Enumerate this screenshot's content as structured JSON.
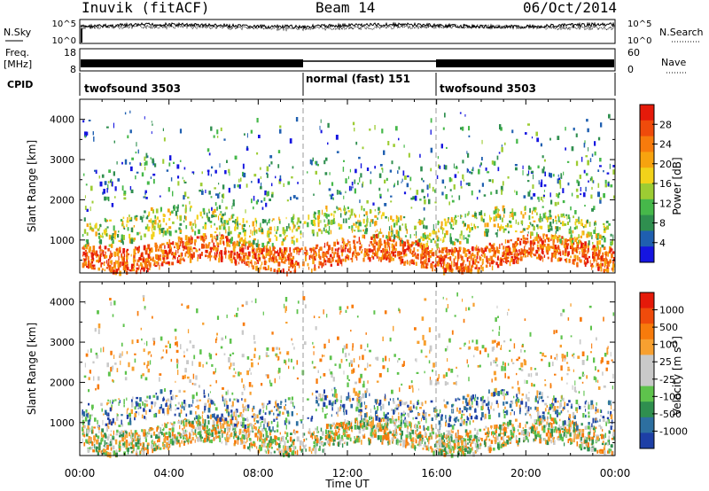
{
  "header": {
    "station": "Inuvik (fitACF)",
    "beam": "Beam 14",
    "date": "06/Oct/2014"
  },
  "left_labels": {
    "nsky": "N.Sky",
    "freq_line1": "Freq.",
    "freq_line2": "[MHz]",
    "cpid": "CPID"
  },
  "right_labels": {
    "nsearch": "N.Search",
    "nave": "Nave"
  },
  "panel_ticks": {
    "noise_left": [
      "10^5",
      "10^0"
    ],
    "noise_right": [
      "10^5",
      "10^0"
    ],
    "freq_left": [
      "18",
      "8"
    ],
    "nave_right": [
      "60",
      "0"
    ]
  },
  "cpid_segments": [
    {
      "label": "twofsound 3503",
      "start_hour": 0,
      "end_hour": 10
    },
    {
      "label": "normal (fast) 151",
      "start_hour": 10,
      "end_hour": 16
    },
    {
      "label": "twofsound 3503",
      "start_hour": 16,
      "end_hour": 24
    }
  ],
  "chart_data": [
    {
      "type": "heatmap",
      "quantity": "Power",
      "xlabel": "",
      "ylabel": "Slant Range [km]",
      "xlim_hours": [
        0,
        24
      ],
      "ylim": [
        180,
        4500
      ],
      "yticks": [
        "1000",
        "2000",
        "3000",
        "4000"
      ],
      "colorbar": {
        "label": "Power [dB]",
        "ticks": [
          "28",
          "24",
          "20",
          "16",
          "12",
          "8",
          "4"
        ],
        "colors": [
          "#1515e0",
          "#1f5fb0",
          "#2f8f4f",
          "#46b84a",
          "#9dcc33",
          "#f2d21a",
          "#f7a30f",
          "#f77b0c",
          "#ef4b0b",
          "#e51a0a"
        ]
      }
    },
    {
      "type": "heatmap",
      "quantity": "Velocity",
      "xlabel": "Time UT",
      "ylabel": "Slant Range [km]",
      "xlim_hours": [
        0,
        24
      ],
      "ylim": [
        180,
        4500
      ],
      "yticks": [
        "1000",
        "2000",
        "3000",
        "4000"
      ],
      "xticks": [
        "00:00",
        "04:00",
        "08:00",
        "12:00",
        "16:00",
        "20:00",
        "00:00"
      ],
      "colorbar": {
        "label": "Velocity [m s",
        "label_exponent": "-1",
        "label_close": "]",
        "ticks": [
          "1000",
          "500",
          "100",
          "25",
          "-25",
          "-100",
          "-500",
          "-1000"
        ],
        "colors": [
          "#1d3fa6",
          "#2d6fa0",
          "#2f8f4f",
          "#5ec34c",
          "#c9c9c9",
          "#c9c9c9",
          "#f7a030",
          "#f77b0c",
          "#ef4b0b",
          "#e51a0a"
        ]
      }
    }
  ]
}
